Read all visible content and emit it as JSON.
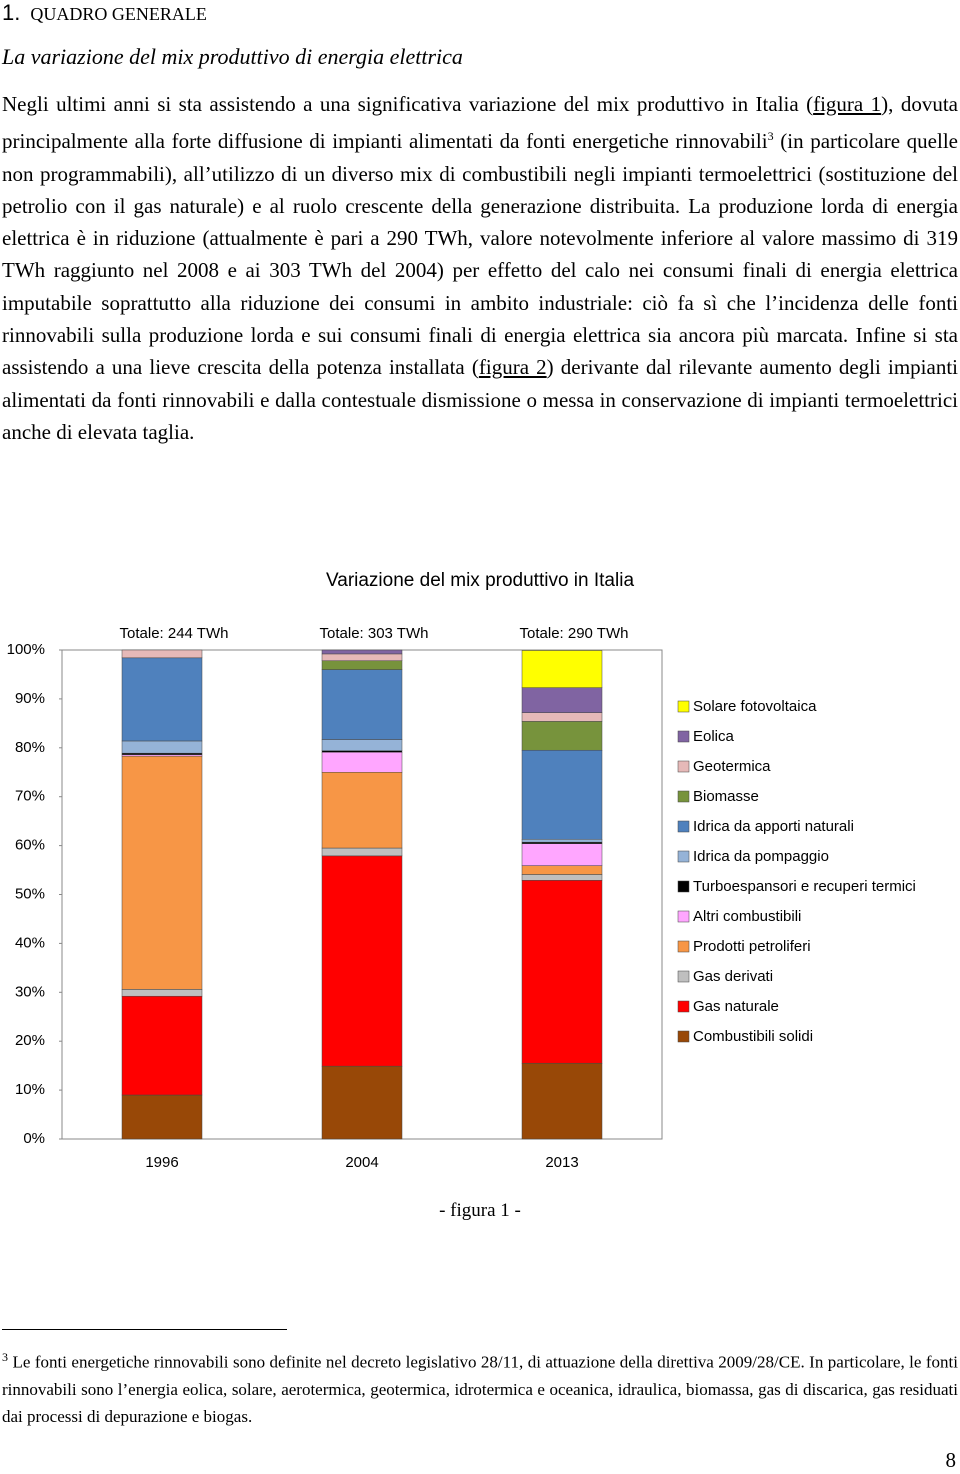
{
  "header": {
    "number": "1.",
    "title": "QUADRO GENERALE",
    "subtitle": "La variazione del mix produttivo di energia elettrica"
  },
  "paragraph": [
    "Negli ultimi anni si sta assistendo a una significativa variazione del mix produttivo in Italia (",
    "figura 1",
    "), dovuta principalmente alla forte diffusione di impianti alimentati da fonti energetiche rinnovabili",
    "3",
    " (in particolare quelle non programmabili), all’utilizzo di un diverso mix di combustibili negli impianti termoelettrici (sostituzione del petrolio con il gas naturale) e al ruolo crescente della generazione distribuita. La produzione lorda di energia elettrica è in riduzione (attualmente è pari a 290 TWh, valore notevolmente inferiore al valore massimo di 319 TWh raggiunto nel 2008 e ai 303 TWh del 2004) per effetto del calo nei consumi finali di energia elettrica imputabile soprattutto alla riduzione dei consumi in ambito industriale: ciò fa sì che l’incidenza delle fonti rinnovabili sulla produzione lorda e sui consumi finali di energia elettrica sia ancora più marcata. Infine si sta assistendo a una lieve crescita della potenza installata (",
    "figura 2",
    ") derivante dal rilevante aumento degli impianti alimentati da fonti rinnovabili e dalla contestuale dismissione o messa in conservazione di impianti termoelettrici anche di elevata taglia."
  ],
  "chart_data": {
    "type": "stacked_bar",
    "title": "Variazione del mix produttivo in Italia",
    "categories": [
      "1996",
      "2004",
      "2013"
    ],
    "bar_labels": [
      "Totale: 244 TWh",
      "Totale: 303 TWh",
      "Totale: 290 TWh"
    ],
    "ylim": [
      0,
      100
    ],
    "yticks": [
      {
        "value": 0,
        "label": "0%"
      },
      {
        "value": 10,
        "label": "10%"
      },
      {
        "value": 20,
        "label": "20%"
      },
      {
        "value": 30,
        "label": "30%"
      },
      {
        "value": 40,
        "label": "40%"
      },
      {
        "value": 50,
        "label": "50%"
      },
      {
        "value": 60,
        "label": "60%"
      },
      {
        "value": 70,
        "label": "70%"
      },
      {
        "value": 80,
        "label": "80%"
      },
      {
        "value": 90,
        "label": "90%"
      },
      {
        "value": 100,
        "label": "100%"
      }
    ],
    "legend": "right",
    "series": [
      {
        "name": "Combustibili solidi",
        "color": "#984807",
        "values": [
          9.0,
          14.9,
          15.5
        ]
      },
      {
        "name": "Gas naturale",
        "color": "#ff0000",
        "values": [
          20.2,
          43.0,
          37.4
        ]
      },
      {
        "name": "Gas derivati",
        "color": "#bfbfbf",
        "values": [
          1.4,
          1.6,
          1.2
        ]
      },
      {
        "name": "Prodotti petroliferi",
        "color": "#f79646",
        "values": [
          47.7,
          15.5,
          1.8
        ]
      },
      {
        "name": "Altri combustibili",
        "color": "#ffa6ff",
        "values": [
          0.3,
          4.1,
          4.5
        ]
      },
      {
        "name": "Turboespansori e recuperi termici",
        "color": "#000000",
        "values": [
          0.3,
          0.3,
          0.3
        ]
      },
      {
        "name": "Idrica da pompaggio",
        "color": "#95b3d7",
        "values": [
          2.5,
          2.3,
          0.6
        ]
      },
      {
        "name": "Idrica da apporti naturali",
        "color": "#4f81bd",
        "values": [
          17.0,
          14.3,
          18.2
        ]
      },
      {
        "name": "Biomasse",
        "color": "#77933c",
        "values": [
          0.0,
          1.8,
          5.9
        ]
      },
      {
        "name": "Geotermica",
        "color": "#e6b9b8",
        "values": [
          1.6,
          1.4,
          1.8
        ]
      },
      {
        "name": "Eolica",
        "color": "#8064a2",
        "values": [
          0.0,
          0.8,
          5.1
        ]
      },
      {
        "name": "Solare fotovoltaica",
        "color": "#ffff00",
        "values": [
          0.0,
          0.0,
          7.6
        ]
      }
    ]
  },
  "caption": "- figura 1 -",
  "footnote": {
    "mark": "3",
    "text": "Le fonti energetiche rinnovabili sono definite nel decreto legislativo 28/11, di attuazione della direttiva 2009/28/CE. In particolare, le fonti rinnovabili sono l’energia eolica, solare, aerotermica, geotermica, idrotermica e oceanica, idraulica, biomassa, gas di discarica, gas residuati dai processi di depurazione e biogas."
  },
  "page_number": "8"
}
